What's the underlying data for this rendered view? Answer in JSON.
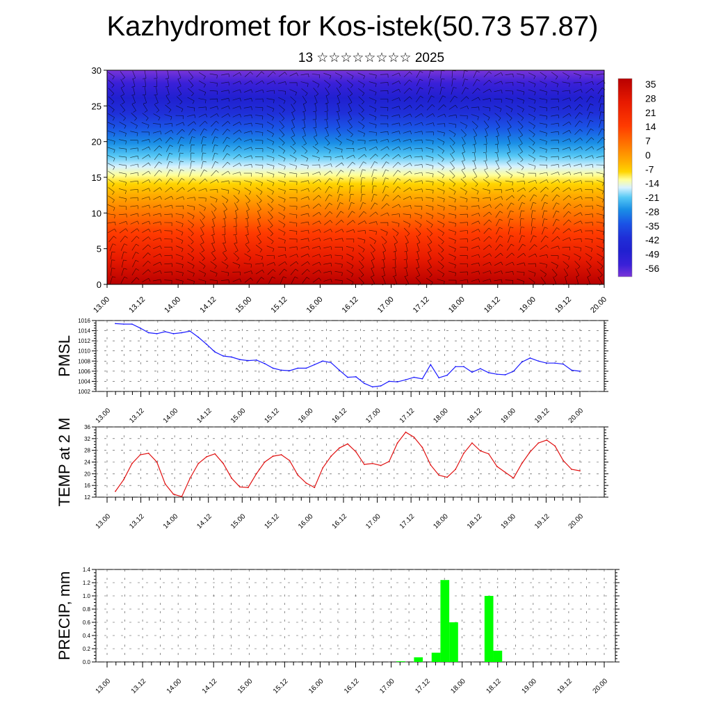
{
  "header": {
    "title": "Kazhydromet for Kos-istek(50.73 57.87)",
    "subtitle": "13 ☆☆☆☆☆☆☆☆ 2025"
  },
  "colors": {
    "pmsl_line": "#1a1aff",
    "temp_line": "#e01010",
    "precip_bar": "#00ff00",
    "colorbar": [
      "#ffe0e0",
      "#b30000",
      "#e80000",
      "#ff3300",
      "#ff7700",
      "#ffaa00",
      "#ffd200",
      "#ffff80",
      "#d0f0ff",
      "#40c0f0",
      "#1090e0",
      "#1050e0",
      "#1020d0",
      "#3010e0",
      "#8020d0"
    ]
  },
  "time_axis": {
    "labels": [
      "13.00",
      "13.12",
      "14.00",
      "14.12",
      "15.00",
      "15.12",
      "16.00",
      "16.12",
      "17.00",
      "17.12",
      "18.00",
      "18.12",
      "19.00",
      "19.12",
      "20.00"
    ]
  },
  "colorbar": {
    "labels": [
      "35",
      "28",
      "21",
      "14",
      "7",
      "0",
      "-7",
      "-14",
      "-21",
      "-28",
      "-35",
      "-42",
      "-49",
      "-56"
    ]
  },
  "chart_data": [
    {
      "type": "heatmap",
      "title": "",
      "ylabel": "",
      "ylim": [
        0,
        30
      ],
      "yticks": [
        0,
        5,
        10,
        15,
        20,
        25,
        30
      ],
      "x_range": [
        "13.00",
        "20.00"
      ],
      "levels": [
        35,
        28,
        21,
        14,
        7,
        0,
        -7,
        -14,
        -21,
        -28,
        -35,
        -42,
        -49,
        -56
      ],
      "overlay": "wind barbs"
    },
    {
      "type": "line",
      "ylabel": "PMSL",
      "ylim": [
        1002,
        1016
      ],
      "yticks": [
        1002,
        1004,
        1006,
        1008,
        1010,
        1012,
        1014,
        1016
      ],
      "x_start": 0,
      "x_step_hours": 3,
      "series": [
        {
          "values": [
            1015.4,
            1015.3,
            1015.3,
            1014.5,
            1013.6,
            1013.4,
            1013.8,
            1013.4,
            1013.6,
            1013.9,
            1012.7,
            1011.3,
            1009.8,
            1009.0,
            1008.8,
            1008.3,
            1008.1,
            1008.2,
            1007.5,
            1006.6,
            1006.2,
            1006.1,
            1006.6,
            1006.6,
            1007.3,
            1008.0,
            1007.7,
            1006.2,
            1004.8,
            1004.9,
            1003.6,
            1002.9,
            1003.1,
            1004.0,
            1003.9,
            1004.3,
            1004.8,
            1004.5,
            1007.3,
            1004.7,
            1005.2,
            1006.9,
            1006.9,
            1005.8,
            1006.5,
            1005.7,
            1005.4,
            1005.3,
            1006.0,
            1007.8,
            1008.6,
            1008.0,
            1007.6,
            1007.6,
            1007.4,
            1006.2,
            1006.0
          ]
        }
      ]
    },
    {
      "type": "line",
      "ylabel": "TEMP at 2 M",
      "ylim": [
        12,
        36
      ],
      "yticks": [
        12,
        16,
        20,
        24,
        28,
        32,
        36
      ],
      "x_start": 0,
      "x_step_hours": 3,
      "series": [
        {
          "values": [
            14,
            18,
            23.5,
            26.5,
            27,
            24,
            16.5,
            13,
            12.2,
            18.5,
            23.5,
            25.8,
            26.8,
            23.5,
            18.5,
            15.5,
            15.3,
            20,
            24,
            26,
            26.5,
            24.5,
            19.5,
            16.8,
            15.3,
            22,
            26,
            28.8,
            30.2,
            27.5,
            23.2,
            23.5,
            22.8,
            24.2,
            30.5,
            34.2,
            32.5,
            29,
            23,
            19.5,
            18.8,
            21.5,
            27,
            30.5,
            27.8,
            26.8,
            22.5,
            20.5,
            18.5,
            23.5,
            27.5,
            30.5,
            31.5,
            29.5,
            24.5,
            21.5,
            21
          ]
        }
      ]
    },
    {
      "type": "bar",
      "ylabel": "PRECIP, mm",
      "ylim": [
        0,
        1.4
      ],
      "yticks": [
        0.0,
        0.2,
        0.4,
        0.6,
        0.8,
        1.0,
        1.2,
        1.4
      ],
      "x_step_hours": 3,
      "bars": [
        {
          "step": 33,
          "value": 0.01
        },
        {
          "step": 35,
          "value": 0.07
        },
        {
          "step": 37,
          "value": 0.14
        },
        {
          "step": 38,
          "value": 1.24
        },
        {
          "step": 39,
          "value": 0.6
        },
        {
          "step": 43,
          "value": 1.0
        },
        {
          "step": 44,
          "value": 0.17
        }
      ]
    }
  ]
}
